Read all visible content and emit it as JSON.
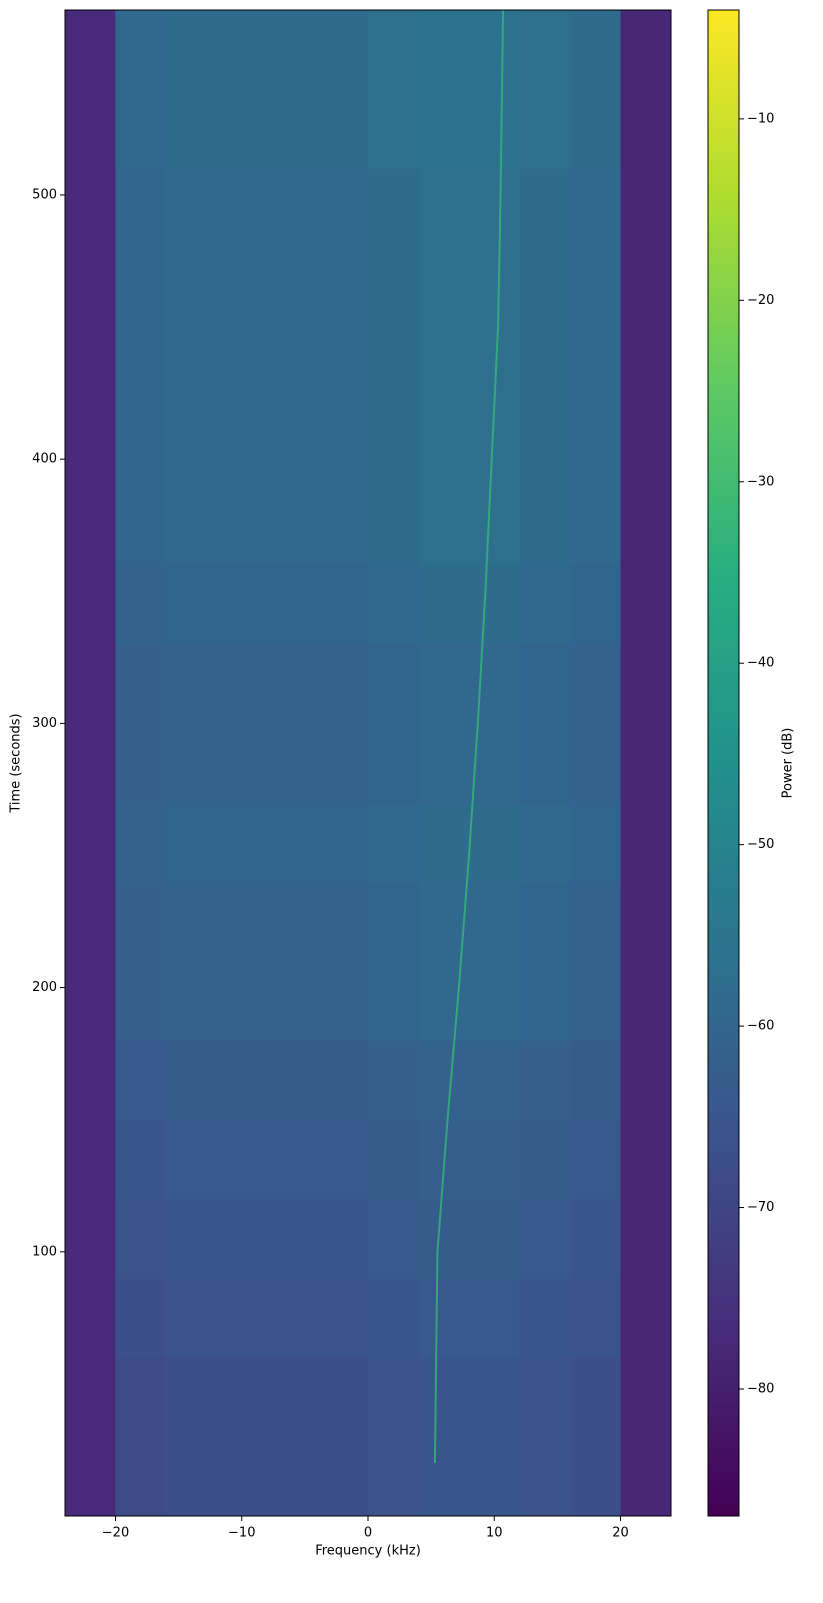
{
  "chart_data": {
    "type": "heatmap",
    "colormap": "viridis",
    "xlabel": "Frequency (kHz)",
    "ylabel": "Time (seconds)",
    "colorbar_label": "Power (dB)",
    "xlim": [
      -24,
      24
    ],
    "ylim": [
      0,
      570
    ],
    "clim": [
      -87,
      -4
    ],
    "xticks": [
      {
        "value": -20,
        "label": "−20"
      },
      {
        "value": -10,
        "label": "−10"
      },
      0,
      10,
      20
    ],
    "yticks": [
      100,
      200,
      300,
      400,
      500
    ],
    "cticks": [
      {
        "value": -80,
        "label": "−80"
      },
      {
        "value": -70,
        "label": "−70"
      },
      {
        "value": -60,
        "label": "−60"
      },
      {
        "value": -50,
        "label": "−50"
      },
      {
        "value": -40,
        "label": "−40"
      },
      {
        "value": -30,
        "label": "−30"
      },
      {
        "value": -20,
        "label": "−20"
      },
      {
        "value": -10,
        "label": "−10"
      }
    ],
    "x_edges": [
      -24,
      -20,
      -16,
      -12,
      -8,
      -4,
      0,
      4,
      8,
      12,
      16,
      20,
      24
    ],
    "y_edges": [
      0,
      30,
      60,
      90,
      120,
      150,
      180,
      210,
      240,
      270,
      300,
      330,
      360,
      390,
      420,
      450,
      480,
      510,
      540,
      570
    ],
    "z": [
      [
        -77,
        -68,
        -67,
        -67,
        -67,
        -67,
        -66,
        -65,
        -65,
        -66,
        -67,
        -78
      ],
      [
        -77,
        -68,
        -67,
        -67,
        -67,
        -67,
        -66,
        -65,
        -65,
        -66,
        -67,
        -78
      ],
      [
        -77,
        -67,
        -66,
        -66,
        -66,
        -66,
        -65,
        -64,
        -64,
        -65,
        -66,
        -78
      ],
      [
        -77,
        -66,
        -65,
        -65,
        -65,
        -65,
        -64,
        -63,
        -63,
        -64,
        -65,
        -78
      ],
      [
        -77,
        -65,
        -64,
        -64,
        -64,
        -64,
        -63,
        -62,
        -62,
        -63,
        -64,
        -78
      ],
      [
        -77,
        -64,
        -63,
        -63,
        -63,
        -63,
        -62,
        -61,
        -61,
        -62,
        -63,
        -78
      ],
      [
        -77,
        -62,
        -61,
        -61,
        -61,
        -61,
        -60,
        -59,
        -59,
        -60,
        -61,
        -78
      ],
      [
        -77,
        -62,
        -61,
        -61,
        -61,
        -61,
        -60,
        -59,
        -59,
        -60,
        -61,
        -78
      ],
      [
        -77,
        -61,
        -60,
        -60,
        -60,
        -60,
        -59,
        -58,
        -58,
        -59,
        -60,
        -78
      ],
      [
        -77,
        -62,
        -61,
        -61,
        -61,
        -61,
        -60,
        -59,
        -59,
        -60,
        -61,
        -78
      ],
      [
        -77,
        -62,
        -61,
        -61,
        -61,
        -61,
        -60,
        -59,
        -59,
        -60,
        -61,
        -78
      ],
      [
        -77,
        -61,
        -60,
        -60,
        -60,
        -60,
        -59,
        -58,
        -58,
        -59,
        -60,
        -78
      ],
      [
        -77,
        -60,
        -59,
        -59,
        -59,
        -59,
        -58,
        -57,
        -57,
        -58,
        -59,
        -78
      ],
      [
        -77,
        -60,
        -59,
        -59,
        -59,
        -59,
        -58,
        -57,
        -57,
        -58,
        -59,
        -78
      ],
      [
        -77,
        -60,
        -59,
        -59,
        -59,
        -59,
        -58,
        -57,
        -57,
        -58,
        -59,
        -78
      ],
      [
        -77,
        -60,
        -59,
        -59,
        -59,
        -59,
        -58,
        -57,
        -57,
        -58,
        -59,
        -78
      ],
      [
        -77,
        -60,
        -59,
        -59,
        -59,
        -59,
        -58,
        -57,
        -57,
        -58,
        -59,
        -78
      ],
      [
        -77,
        -59,
        -58,
        -58,
        -58,
        -58,
        -57,
        -56,
        -56,
        -57,
        -58,
        -78
      ],
      [
        -77,
        -59,
        -58,
        -58,
        -58,
        -58,
        -57,
        -56,
        -56,
        -57,
        -58,
        -78
      ]
    ],
    "ridge": {
      "color": "#35b779",
      "x": [
        5.3,
        5.4,
        5.5,
        6.3,
        7.2,
        8.0,
        8.7,
        9.3,
        9.8,
        10.3,
        10.5,
        10.7
      ],
      "y": [
        20,
        60,
        100,
        150,
        200,
        250,
        300,
        350,
        400,
        450,
        500,
        570
      ]
    }
  }
}
